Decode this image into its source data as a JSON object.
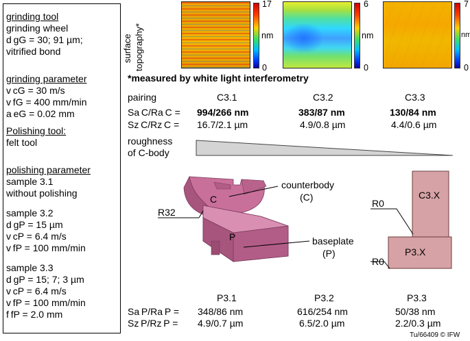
{
  "left_panel": {
    "grinding_tool_heading": "grinding tool",
    "grinding_tool_lines": [
      "grinding wheel",
      "d gG = 30; 91 µm;",
      "vitrified bond"
    ],
    "grinding_parameter_heading": "grinding parameter",
    "grinding_parameter_lines": [
      "v cG = 30 m/s",
      "v fG = 400 mm/min",
      "a eG = 0.02 mm"
    ],
    "polishing_tool_heading": "Polishing tool:",
    "polishing_tool_line": "felt tool",
    "polishing_parameter_heading": "polishing parameter",
    "sample31_lines": [
      "sample 3.1",
      "without polishing"
    ],
    "sample32_lines": [
      "sample 3.2",
      "d gP = 15 µm",
      "v cP = 6.4 m/s",
      "v fP = 100 mm/min"
    ],
    "sample33_lines": [
      "sample 3.3",
      "d gP = 15; 7; 3 µm",
      "v cP = 6.4 m/s",
      "v fP = 100 mm/min",
      "f fP = 2.0 mm"
    ]
  },
  "topography": {
    "axis_label_line1": "surface",
    "axis_label_line2": "topography*",
    "footnote": "*measured by white light interferometry",
    "maps": [
      {
        "max": "17",
        "min": "0",
        "unit": "nm"
      },
      {
        "max": "6",
        "min": "0",
        "unit": "nm"
      },
      {
        "max": "7",
        "min": "0",
        "unit": "nm"
      }
    ]
  },
  "pairing_table": {
    "pairing_label": "pairing",
    "pairings": [
      "C3.1",
      "C3.2",
      "C3.3"
    ],
    "sa_label": "Sa C/Ra C =",
    "sa_values": [
      "994/266 nm",
      "383/87 nm",
      "130/84 nm"
    ],
    "sz_label": "Sz C/Rz C =",
    "sz_values": [
      "16.7/2.1 µm",
      "4.9/0.8 µm",
      "4.4/0.6 µm"
    ],
    "roughness_line1": "roughness",
    "roughness_line2": "of C-body"
  },
  "diagram": {
    "counterbody_label": "counterbody",
    "counterbody_abbr": "(C)",
    "baseplate_label": "baseplate",
    "baseplate_abbr": "(P)",
    "c_letter": "C",
    "p_letter": "P",
    "r32": "R32",
    "r0_top": "R0",
    "r0_bottom": "R0",
    "c3x": "C3.X",
    "p3x": "P3.X"
  },
  "bottom_table": {
    "samples": [
      "P3.1",
      "P3.2",
      "P3.3"
    ],
    "sa_label": "Sa P/Ra P =",
    "sa_values": [
      "348/86 nm",
      "616/254 nm",
      "50/38 nm"
    ],
    "sz_label": "Sz P/Rz P =",
    "sz_values": [
      "4.9/0.7 µm",
      "6.5/2.0 µm",
      "2.2/0.3 µm"
    ]
  },
  "credit": "Tu/66409 © IFW",
  "colors": {
    "part_fill": "#c9709a",
    "part_dark": "#a8557e",
    "schematic_fill": "#d6a2a6",
    "wedge_fill": "#d4d4d4"
  }
}
